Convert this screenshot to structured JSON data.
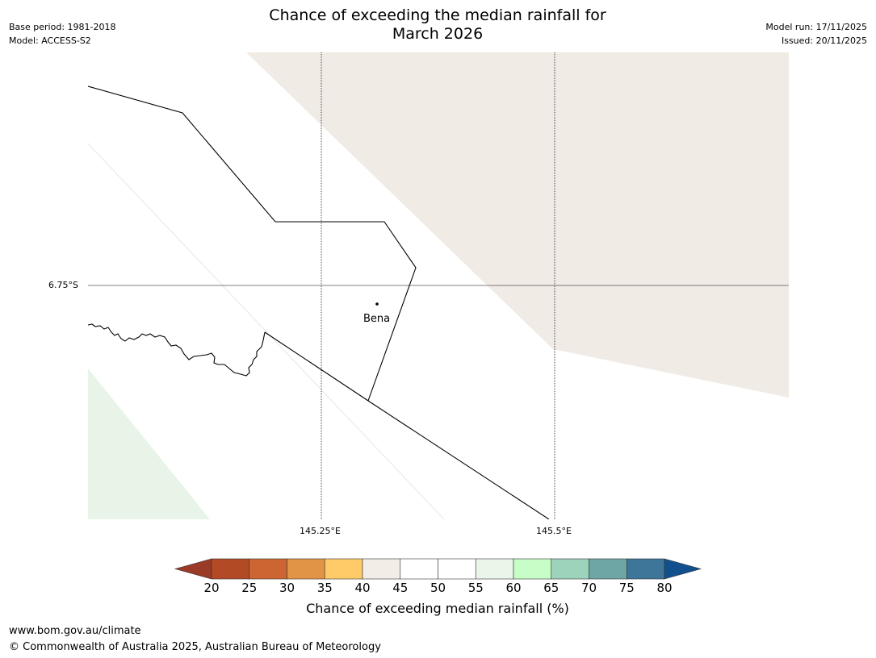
{
  "header": {
    "title_line1": "Chance of exceeding the median rainfall for",
    "title_line2": "March 2026",
    "base_period": "Base period: 1981-2018",
    "model": "Model: ACCESS-S2",
    "model_run": "Model run: 17/11/2025",
    "issued": "Issued: 20/11/2025"
  },
  "map": {
    "place_label": "Bena",
    "lat_label": "6.75°S",
    "lon_labels": [
      "145.25°E",
      "145.5°E"
    ]
  },
  "colorbar": {
    "label": "Chance of exceeding median rainfall (%)",
    "ticks": [
      "20",
      "25",
      "30",
      "35",
      "40",
      "45",
      "50",
      "55",
      "60",
      "65",
      "70",
      "75",
      "80"
    ],
    "colors": [
      "#9b3a26",
      "#b34a26",
      "#cc6532",
      "#e29446",
      "#fecb68",
      "#f2ede6",
      "#ffffff",
      "#ffffff",
      "#eaf6ea",
      "#c7fdc7",
      "#9dd2bb",
      "#6ea6a5",
      "#3d7699",
      "#124f8d"
    ]
  },
  "footer": {
    "website": "www.bom.gov.au/climate",
    "copyright": "© Commonwealth of Australia 2025, Australian Bureau of Meteorology"
  }
}
